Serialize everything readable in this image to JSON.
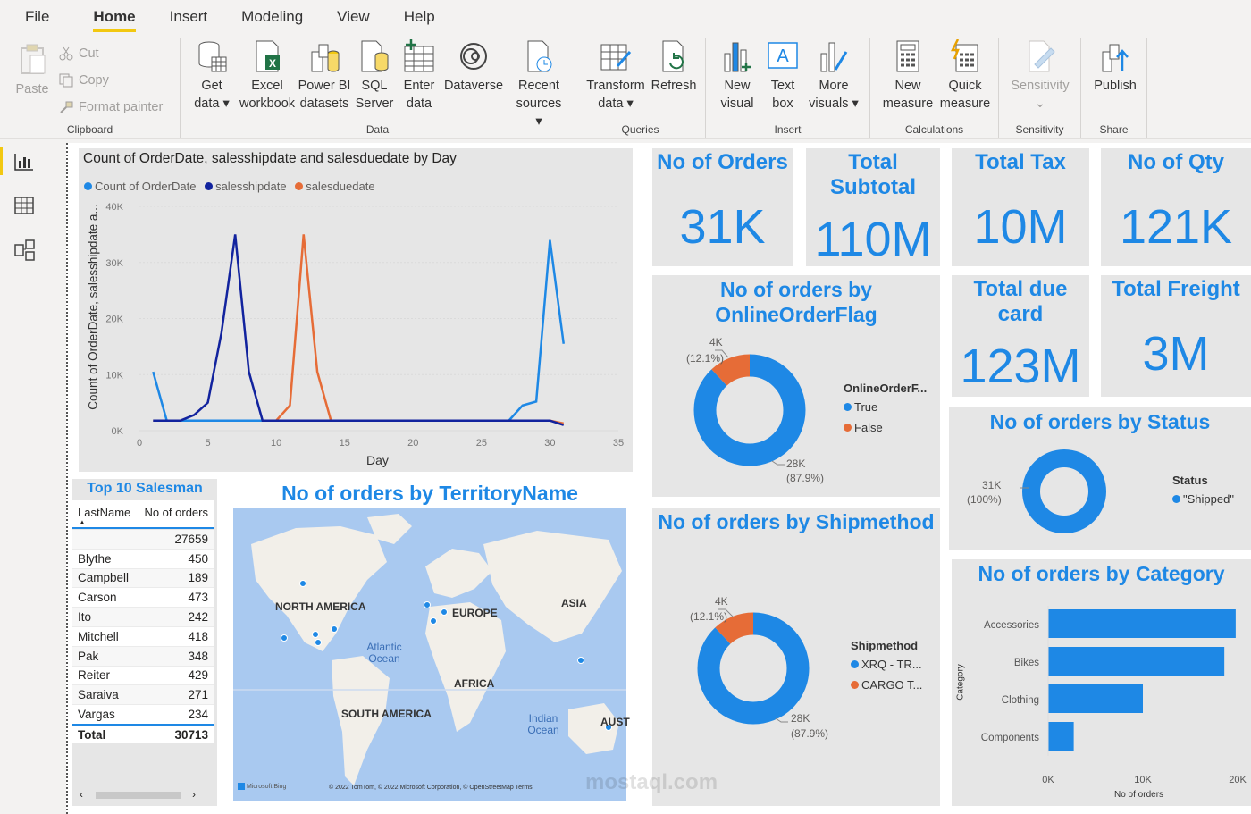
{
  "menu": [
    "File",
    "Home",
    "Insert",
    "Modeling",
    "View",
    "Help"
  ],
  "ribbon": {
    "clipboard": {
      "label": "Clipboard",
      "paste": "Paste",
      "cut": "Cut",
      "copy": "Copy",
      "format_painter": "Format painter"
    },
    "data": {
      "label": "Data",
      "get_data": [
        "Get",
        "data"
      ],
      "excel": [
        "Excel",
        "workbook"
      ],
      "powerbi": [
        "Power BI",
        "datasets"
      ],
      "sql": [
        "SQL",
        "Server"
      ],
      "enter": [
        "Enter",
        "data"
      ],
      "dataverse": [
        "Dataverse",
        ""
      ],
      "recent": [
        "Recent",
        "sources"
      ]
    },
    "queries": {
      "label": "Queries",
      "transform": [
        "Transform",
        "data"
      ],
      "refresh": [
        "Refresh",
        ""
      ]
    },
    "insert": {
      "label": "Insert",
      "new_visual": [
        "New",
        "visual"
      ],
      "text_box": [
        "Text",
        "box"
      ],
      "more_visuals": [
        "More",
        "visuals"
      ]
    },
    "calculations": {
      "label": "Calculations",
      "new_measure": [
        "New",
        "measure"
      ],
      "quick_measure": [
        "Quick",
        "measure"
      ]
    },
    "sensitivity": {
      "label": "Sensitivity",
      "btn": [
        "Sensitivity",
        ""
      ]
    },
    "share": {
      "label": "Share",
      "publish": [
        "Publish",
        ""
      ]
    }
  },
  "line_chart": {
    "title": "Count of OrderDate, salesshipdate and salesduedate by Day",
    "legend": [
      "Count of OrderDate",
      "salesshipdate",
      "salesduedate"
    ],
    "ylabel": "Count of OrderDate, salesshipdate a...",
    "xlabel": "Day"
  },
  "kpis": [
    {
      "title": "No of Orders",
      "value": "31K"
    },
    {
      "title": "Total Subtotal",
      "value": "110M"
    },
    {
      "title": "Total Tax",
      "value": "10M"
    },
    {
      "title": "No of Qty",
      "value": "121K"
    },
    {
      "title": "Total due card",
      "value": "123M"
    },
    {
      "title": "Total Freight",
      "value": "3M"
    }
  ],
  "donut_online": {
    "title": "No of orders by OnlineOrderFlag",
    "legend_title": "OnlineOrderF...",
    "legend": [
      "True",
      "False"
    ],
    "small_label": "4K",
    "small_pct": "(12.1%)",
    "large_label": "28K",
    "large_pct": "(87.9%)"
  },
  "donut_status": {
    "title": "No of orders by Status",
    "legend_title": "Status",
    "legend": [
      "\"Shipped\""
    ],
    "label": "31K",
    "pct": "(100%)"
  },
  "donut_ship": {
    "title": "No of orders by Shipmethod",
    "legend_title": "Shipmethod",
    "legend": [
      "XRQ - TR...",
      "CARGO T..."
    ],
    "small_label": "4K",
    "small_pct": "(12.1%)",
    "large_label": "28K",
    "large_pct": "(87.9%)"
  },
  "category_chart": {
    "title": "No of orders by Category",
    "ylabel": "Category",
    "xlabel": "No of orders",
    "xticks": [
      "0K",
      "10K",
      "20K"
    ]
  },
  "table": {
    "title": "Top 10 Salesman",
    "headers": [
      "LastName",
      "No of orders"
    ],
    "rows": [
      [
        "",
        "27659"
      ],
      [
        "Blythe",
        "450"
      ],
      [
        "Campbell",
        "189"
      ],
      [
        "Carson",
        "473"
      ],
      [
        "Ito",
        "242"
      ],
      [
        "Mitchell",
        "418"
      ],
      [
        "Pak",
        "348"
      ],
      [
        "Reiter",
        "429"
      ],
      [
        "Saraiva",
        "271"
      ],
      [
        "Vargas",
        "234"
      ]
    ],
    "total": [
      "Total",
      "30713"
    ]
  },
  "map": {
    "title": "No of orders by TerritoryName",
    "labels": [
      "NORTH AMERICA",
      "EUROPE",
      "ASIA",
      "Atlantic Ocean",
      "AFRICA",
      "SOUTH AMERICA",
      "Indian Ocean",
      "AUST"
    ],
    "footer": "© 2022 TomTom, © 2022 Microsoft Corporation, © OpenStreetMap  Terms",
    "brand": "Microsoft Bing"
  },
  "watermark": "mostaql.com",
  "colors": {
    "blue": "#1e88e5",
    "navy": "#12239e",
    "orange": "#e66c37",
    "accent": "#f2c811"
  },
  "chart_data": [
    {
      "type": "line",
      "title": "Count of OrderDate, salesshipdate and salesduedate by Day",
      "xlabel": "Day",
      "ylabel": "Count of OrderDate, salesshipdate a...",
      "xlim": [
        0,
        35
      ],
      "ylim": [
        0,
        40000
      ],
      "x": [
        1,
        2,
        3,
        4,
        5,
        6,
        7,
        8,
        9,
        10,
        11,
        12,
        13,
        14,
        15,
        16,
        17,
        18,
        19,
        20,
        21,
        22,
        23,
        24,
        25,
        26,
        27,
        28,
        29,
        30,
        31
      ],
      "series": [
        {
          "name": "Count of OrderDate",
          "values": [
            10500,
            1800,
            1800,
            1800,
            1800,
            1800,
            1800,
            1800,
            1800,
            1800,
            1800,
            1800,
            1800,
            1800,
            1800,
            1800,
            1800,
            1800,
            1800,
            1800,
            1800,
            1800,
            1800,
            1800,
            1800,
            1800,
            1800,
            4500,
            5200,
            34000,
            15500
          ]
        },
        {
          "name": "salesshipdate",
          "values": [
            1800,
            1800,
            1800,
            2800,
            5000,
            17500,
            35000,
            10500,
            1800,
            1800,
            1800,
            1800,
            1800,
            1800,
            1800,
            1800,
            1800,
            1800,
            1800,
            1800,
            1800,
            1800,
            1800,
            1800,
            1800,
            1800,
            1800,
            1800,
            1800,
            1800,
            1000
          ]
        },
        {
          "name": "salesduedate",
          "values": [
            1800,
            1800,
            1800,
            1800,
            1800,
            1800,
            1800,
            1800,
            1800,
            1800,
            4500,
            35000,
            10500,
            1800,
            1800,
            1800,
            1800,
            1800,
            1800,
            1800,
            1800,
            1800,
            1800,
            1800,
            1800,
            1800,
            1800,
            1800,
            1800,
            1800,
            1300
          ]
        }
      ]
    },
    {
      "type": "pie",
      "title": "No of orders by OnlineOrderFlag",
      "categories": [
        "True",
        "False"
      ],
      "values": [
        28000,
        4000
      ],
      "percent": [
        87.9,
        12.1
      ]
    },
    {
      "type": "pie",
      "title": "No of orders by Status",
      "categories": [
        "\"Shipped\""
      ],
      "values": [
        31000
      ],
      "percent": [
        100
      ]
    },
    {
      "type": "pie",
      "title": "No of orders by Shipmethod",
      "categories": [
        "XRQ - TR...",
        "CARGO T..."
      ],
      "values": [
        28000,
        4000
      ],
      "percent": [
        87.9,
        12.1
      ]
    },
    {
      "type": "bar",
      "title": "No of orders by Category",
      "orientation": "horizontal",
      "categories": [
        "Accessories",
        "Bikes",
        "Clothing",
        "Components"
      ],
      "values": [
        19800,
        18600,
        10000,
        2700
      ],
      "xlim": [
        0,
        20000
      ],
      "xlabel": "No of orders",
      "ylabel": "Category"
    }
  ]
}
